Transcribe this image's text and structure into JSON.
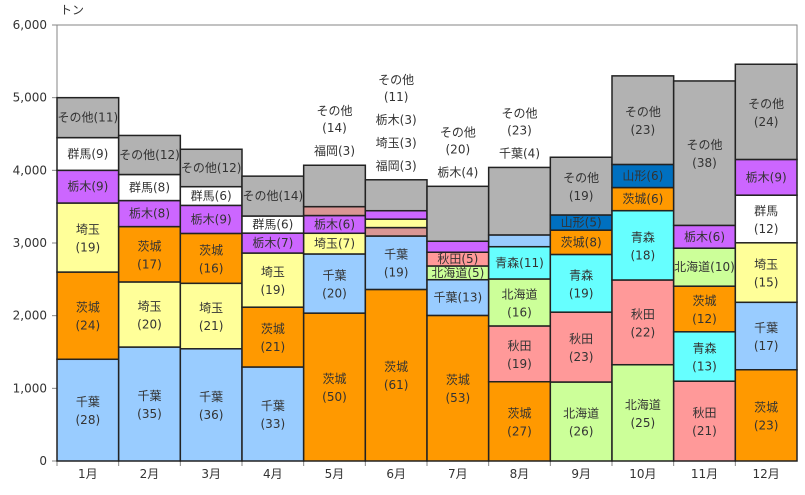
{
  "chart_data": {
    "type": "bar",
    "stacked": true,
    "title": "",
    "unit_label": "トン",
    "xlabel": "",
    "ylabel": "トン",
    "ylim": [
      0,
      6000
    ],
    "yticks": [
      0,
      1000,
      2000,
      3000,
      4000,
      5000,
      6000
    ],
    "ytick_labels": [
      "0",
      "1,000",
      "2,000",
      "3,000",
      "4,000",
      "5,000",
      "6,000"
    ],
    "grid": false,
    "legend": "none",
    "colors": {
      "千葉": "#99CCFF",
      "茨城": "#FF9900",
      "埼玉": "#FFFF99",
      "栃木": "#CC66FF",
      "群馬": "#FFFFFF",
      "その他": "#B2B2B2",
      "福岡": "#DA9694",
      "北海道": "#CCFF99",
      "秋田": "#FF9999",
      "青森": "#66FFFF",
      "山形": "#0070C0"
    },
    "months": [
      {
        "label": "1月",
        "total": 5000,
        "segments": [
          {
            "name": "千葉",
            "pct": 28
          },
          {
            "name": "茨城",
            "pct": 24
          },
          {
            "name": "埼玉",
            "pct": 19
          },
          {
            "name": "栃木",
            "pct": 9
          },
          {
            "name": "群馬",
            "pct": 9
          },
          {
            "name": "その他",
            "pct": 11
          }
        ]
      },
      {
        "label": "2月",
        "total": 4480,
        "segments": [
          {
            "name": "千葉",
            "pct": 35
          },
          {
            "name": "埼玉",
            "pct": 20
          },
          {
            "name": "茨城",
            "pct": 17
          },
          {
            "name": "栃木",
            "pct": 8
          },
          {
            "name": "群馬",
            "pct": 8
          },
          {
            "name": "その他",
            "pct": 12
          }
        ]
      },
      {
        "label": "3月",
        "total": 4290,
        "segments": [
          {
            "name": "千葉",
            "pct": 36
          },
          {
            "name": "埼玉",
            "pct": 21
          },
          {
            "name": "茨城",
            "pct": 16
          },
          {
            "name": "栃木",
            "pct": 9
          },
          {
            "name": "群馬",
            "pct": 6
          },
          {
            "name": "その他",
            "pct": 12
          }
        ]
      },
      {
        "label": "4月",
        "total": 3920,
        "segments": [
          {
            "name": "千葉",
            "pct": 33
          },
          {
            "name": "茨城",
            "pct": 21
          },
          {
            "name": "埼玉",
            "pct": 19
          },
          {
            "name": "栃木",
            "pct": 7
          },
          {
            "name": "群馬",
            "pct": 6
          },
          {
            "name": "その他",
            "pct": 14
          }
        ]
      },
      {
        "label": "5月",
        "total": 4070,
        "segments": [
          {
            "name": "茨城",
            "pct": 50
          },
          {
            "name": "千葉",
            "pct": 20
          },
          {
            "name": "埼玉",
            "pct": 7
          },
          {
            "name": "栃木",
            "pct": 6
          },
          {
            "name": "福岡",
            "pct": 3,
            "outside": true
          },
          {
            "name": "その他",
            "pct": 14,
            "outside": true
          }
        ]
      },
      {
        "label": "6月",
        "total": 3870,
        "segments": [
          {
            "name": "茨城",
            "pct": 61
          },
          {
            "name": "千葉",
            "pct": 19
          },
          {
            "name": "福岡",
            "pct": 3,
            "outside": true
          },
          {
            "name": "埼玉",
            "pct": 3,
            "outside": true
          },
          {
            "name": "栃木",
            "pct": 3,
            "outside": true
          },
          {
            "name": "その他",
            "pct": 11,
            "outside": true
          }
        ]
      },
      {
        "label": "7月",
        "total": 3780,
        "segments": [
          {
            "name": "茨城",
            "pct": 53
          },
          {
            "name": "千葉",
            "pct": 13
          },
          {
            "name": "北海道",
            "pct": 5
          },
          {
            "name": "秋田",
            "pct": 5
          },
          {
            "name": "栃木",
            "pct": 4,
            "outside": true
          },
          {
            "name": "その他",
            "pct": 20,
            "outside": true
          }
        ]
      },
      {
        "label": "8月",
        "total": 4040,
        "segments": [
          {
            "name": "茨城",
            "pct": 27
          },
          {
            "name": "秋田",
            "pct": 19
          },
          {
            "name": "北海道",
            "pct": 16
          },
          {
            "name": "青森",
            "pct": 11
          },
          {
            "name": "千葉",
            "pct": 4,
            "outside": true
          },
          {
            "name": "その他",
            "pct": 23,
            "outside": true
          }
        ]
      },
      {
        "label": "9月",
        "total": 4180,
        "segments": [
          {
            "name": "北海道",
            "pct": 26
          },
          {
            "name": "秋田",
            "pct": 23
          },
          {
            "name": "青森",
            "pct": 19
          },
          {
            "name": "茨城",
            "pct": 8
          },
          {
            "name": "山形",
            "pct": 5
          },
          {
            "name": "その他",
            "pct": 19
          }
        ]
      },
      {
        "label": "10月",
        "total": 5300,
        "segments": [
          {
            "name": "北海道",
            "pct": 25
          },
          {
            "name": "秋田",
            "pct": 22
          },
          {
            "name": "青森",
            "pct": 18
          },
          {
            "name": "茨城",
            "pct": 6
          },
          {
            "name": "山形",
            "pct": 6
          },
          {
            "name": "その他",
            "pct": 23
          }
        ]
      },
      {
        "label": "11月",
        "total": 5230,
        "segments": [
          {
            "name": "秋田",
            "pct": 21
          },
          {
            "name": "青森",
            "pct": 13
          },
          {
            "name": "茨城",
            "pct": 12
          },
          {
            "name": "北海道",
            "pct": 10
          },
          {
            "name": "栃木",
            "pct": 6
          },
          {
            "name": "その他",
            "pct": 38
          }
        ]
      },
      {
        "label": "12月",
        "total": 5460,
        "segments": [
          {
            "name": "茨城",
            "pct": 23
          },
          {
            "name": "千葉",
            "pct": 17
          },
          {
            "name": "埼玉",
            "pct": 15
          },
          {
            "name": "群馬",
            "pct": 12
          },
          {
            "name": "栃木",
            "pct": 9
          },
          {
            "name": "その他",
            "pct": 24
          }
        ]
      }
    ]
  }
}
